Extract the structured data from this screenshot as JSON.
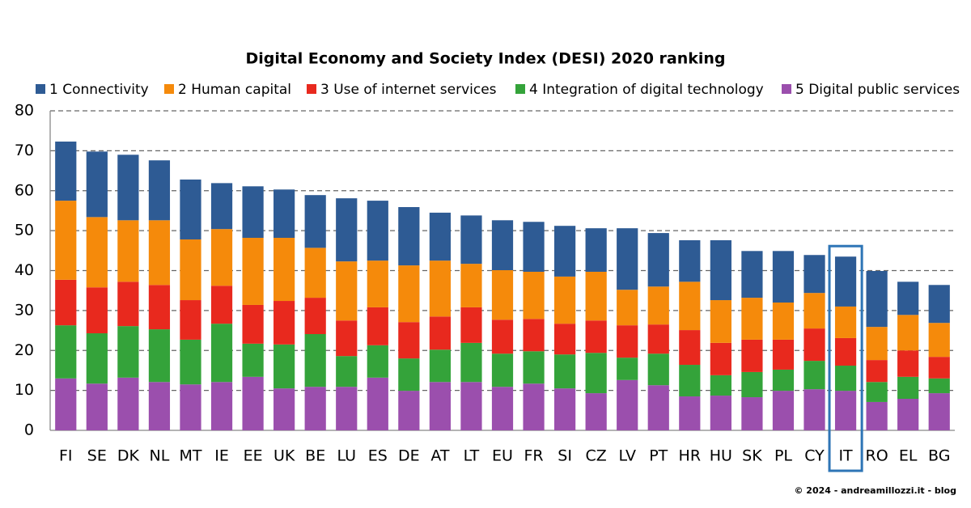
{
  "chart_data": {
    "type": "stacked_bar",
    "title": "Digital Economy and Society Index (DESI) 2020 ranking",
    "categories": [
      "FI",
      "SE",
      "DK",
      "NL",
      "MT",
      "IE",
      "EE",
      "UK",
      "BE",
      "LU",
      "ES",
      "DE",
      "AT",
      "LT",
      "EU",
      "FR",
      "SI",
      "CZ",
      "LV",
      "PT",
      "HR",
      "HU",
      "SK",
      "PL",
      "CY",
      "IT",
      "RO",
      "EL",
      "BG"
    ],
    "series": [
      {
        "name": "1 Connectivity",
        "color": "#2e5b94",
        "values": [
          14.8,
          16.4,
          16.4,
          15.0,
          15.0,
          11.5,
          12.9,
          12.1,
          13.2,
          15.8,
          15.0,
          14.6,
          12.0,
          12.1,
          12.5,
          12.5,
          12.7,
          10.9,
          15.4,
          13.4,
          10.4,
          15.0,
          11.7,
          12.9,
          9.5,
          12.5,
          14.0,
          8.3,
          9.5
        ]
      },
      {
        "name": "2 Human capital",
        "color": "#f58a0b",
        "values": [
          19.8,
          17.6,
          15.4,
          16.2,
          15.2,
          14.2,
          16.8,
          15.8,
          12.5,
          14.8,
          11.7,
          14.2,
          14.0,
          10.9,
          12.4,
          11.8,
          11.8,
          12.2,
          8.9,
          9.5,
          12.1,
          10.7,
          10.5,
          9.3,
          8.9,
          7.9,
          8.3,
          8.9,
          8.5
        ]
      },
      {
        "name": "3 Use of internet services",
        "color": "#e8291e",
        "values": [
          11.4,
          11.5,
          11.1,
          11.1,
          9.9,
          9.5,
          9.7,
          10.9,
          9.1,
          8.9,
          9.5,
          9.1,
          8.3,
          8.9,
          8.5,
          8.1,
          7.7,
          8.1,
          8.1,
          7.3,
          8.7,
          8.1,
          8.1,
          7.5,
          8.1,
          6.9,
          5.5,
          6.6,
          5.4
        ]
      },
      {
        "name": "4 Integration of digital technology",
        "color": "#34a33a",
        "values": [
          13.3,
          12.6,
          12.9,
          13.2,
          11.2,
          14.6,
          8.3,
          11.0,
          13.2,
          7.7,
          8.1,
          8.1,
          8.1,
          9.8,
          8.3,
          8.1,
          8.5,
          10.1,
          5.6,
          7.9,
          7.9,
          5.1,
          6.3,
          5.3,
          7.1,
          6.3,
          5.0,
          5.5,
          3.7
        ]
      },
      {
        "name": "5 Digital public services",
        "color": "#9b4fad",
        "values": [
          13.0,
          11.7,
          13.2,
          12.1,
          11.5,
          12.1,
          13.4,
          10.5,
          10.9,
          10.9,
          13.2,
          9.9,
          12.1,
          12.1,
          10.9,
          11.7,
          10.5,
          9.3,
          12.6,
          11.3,
          8.5,
          8.7,
          8.3,
          9.9,
          10.3,
          9.9,
          7.1,
          7.9,
          9.3
        ]
      }
    ],
    "ylim": [
      0,
      80
    ],
    "yticks": [
      0,
      10,
      20,
      30,
      40,
      50,
      60,
      70,
      80
    ],
    "grid": true,
    "highlight": "IT",
    "footer": "© 2024 - andreamillozzi.it - blog"
  }
}
